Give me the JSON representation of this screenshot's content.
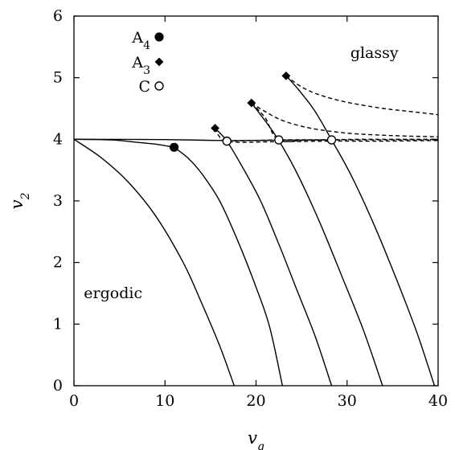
{
  "chart_data": {
    "type": "line",
    "xlabel": "v_q",
    "ylabel": "v_2",
    "xlim": [
      0,
      40
    ],
    "ylim": [
      0,
      6
    ],
    "xticks": [
      0,
      10,
      20,
      30,
      40
    ],
    "yticks": [
      0,
      1,
      2,
      3,
      4,
      5,
      6
    ],
    "grid": false,
    "legend": {
      "position": "top-left",
      "entries": [
        {
          "label_base": "A",
          "label_sub": "4",
          "marker": "filled-circle"
        },
        {
          "label_base": "A",
          "label_sub": "3",
          "marker": "filled-diamond"
        },
        {
          "label_base": "C",
          "label_sub": "",
          "marker": "open-circle"
        }
      ]
    },
    "annotations": [
      {
        "text": "glassy",
        "x": 33,
        "y": 5.4
      },
      {
        "text": "ergodic",
        "x": 4.3,
        "y": 1.5
      }
    ],
    "series": [
      {
        "style": "solid",
        "points": [
          [
            0,
            4.0
          ],
          [
            4,
            3.99
          ],
          [
            7,
            3.95
          ],
          [
            9,
            3.92
          ],
          [
            11,
            3.87
          ]
        ]
      },
      {
        "style": "solid",
        "points": [
          [
            0,
            4.0
          ],
          [
            3,
            3.7
          ],
          [
            6,
            3.3
          ],
          [
            9,
            2.75
          ],
          [
            12,
            2.0
          ],
          [
            14,
            1.35
          ],
          [
            16,
            0.65
          ],
          [
            17.6,
            0.0
          ]
        ]
      },
      {
        "style": "solid",
        "points": [
          [
            11,
            3.87
          ],
          [
            12.5,
            3.7
          ],
          [
            14,
            3.45
          ],
          [
            16,
            3.0
          ],
          [
            18,
            2.35
          ],
          [
            20,
            1.6
          ],
          [
            21.5,
            0.95
          ],
          [
            22.9,
            0.0
          ]
        ]
      },
      {
        "style": "solid",
        "points": [
          [
            15.5,
            4.18
          ],
          [
            16.8,
            3.97
          ],
          [
            18.5,
            3.55
          ],
          [
            20.5,
            3.0
          ],
          [
            22.5,
            2.3
          ],
          [
            24.5,
            1.55
          ],
          [
            26.5,
            0.8
          ],
          [
            28.3,
            0.0
          ]
        ]
      },
      {
        "style": "solid",
        "points": [
          [
            19.5,
            4.59
          ],
          [
            21,
            4.3
          ],
          [
            22.5,
            3.98
          ],
          [
            24.5,
            3.45
          ],
          [
            27,
            2.65
          ],
          [
            29.5,
            1.75
          ],
          [
            31.8,
            0.9
          ],
          [
            33.9,
            0.0
          ]
        ]
      },
      {
        "style": "solid",
        "points": [
          [
            23.3,
            5.03
          ],
          [
            24.7,
            4.8
          ],
          [
            26.5,
            4.45
          ],
          [
            28.3,
            3.99
          ],
          [
            30.5,
            3.4
          ],
          [
            33,
            2.6
          ],
          [
            35.5,
            1.7
          ],
          [
            37.7,
            0.85
          ],
          [
            39.6,
            0.0
          ]
        ]
      },
      {
        "style": "solid",
        "points": [
          [
            0,
            4.0
          ],
          [
            10,
            3.995
          ],
          [
            16.8,
            3.98
          ],
          [
            22.5,
            3.985
          ],
          [
            28.3,
            3.99
          ]
        ]
      },
      {
        "style": "dashed",
        "points": [
          [
            15.5,
            4.18
          ],
          [
            16.8,
            3.97
          ],
          [
            22,
            3.96
          ],
          [
            28,
            3.97
          ],
          [
            34,
            3.97
          ],
          [
            40,
            3.98
          ]
        ]
      },
      {
        "style": "dashed",
        "points": [
          [
            19.5,
            4.59
          ],
          [
            21,
            4.35
          ],
          [
            22.5,
            3.99
          ],
          [
            26,
            3.99
          ],
          [
            32,
            4.0
          ],
          [
            40,
            4.0
          ]
        ]
      },
      {
        "style": "dashed",
        "points": [
          [
            19.5,
            4.59
          ],
          [
            21,
            4.45
          ],
          [
            23,
            4.3
          ],
          [
            26,
            4.18
          ],
          [
            30,
            4.1
          ],
          [
            35,
            4.06
          ],
          [
            40,
            4.04
          ]
        ]
      },
      {
        "style": "dashed",
        "points": [
          [
            23.3,
            5.03
          ],
          [
            25,
            4.85
          ],
          [
            27,
            4.72
          ],
          [
            30,
            4.6
          ],
          [
            34,
            4.5
          ],
          [
            37,
            4.45
          ],
          [
            40,
            4.4
          ]
        ]
      },
      {
        "style": "dashed",
        "points": [
          [
            16.8,
            3.97
          ],
          [
            22.5,
            3.99
          ],
          [
            28.3,
            3.99
          ],
          [
            34,
            3.99
          ],
          [
            40,
            3.99
          ]
        ]
      }
    ],
    "markers": {
      "A4": [
        [
          11,
          3.87
        ]
      ],
      "A3": [
        [
          15.5,
          4.18
        ],
        [
          19.5,
          4.59
        ],
        [
          23.3,
          5.03
        ]
      ],
      "C": [
        [
          16.8,
          3.97
        ],
        [
          22.5,
          3.99
        ],
        [
          28.3,
          3.99
        ]
      ]
    }
  }
}
